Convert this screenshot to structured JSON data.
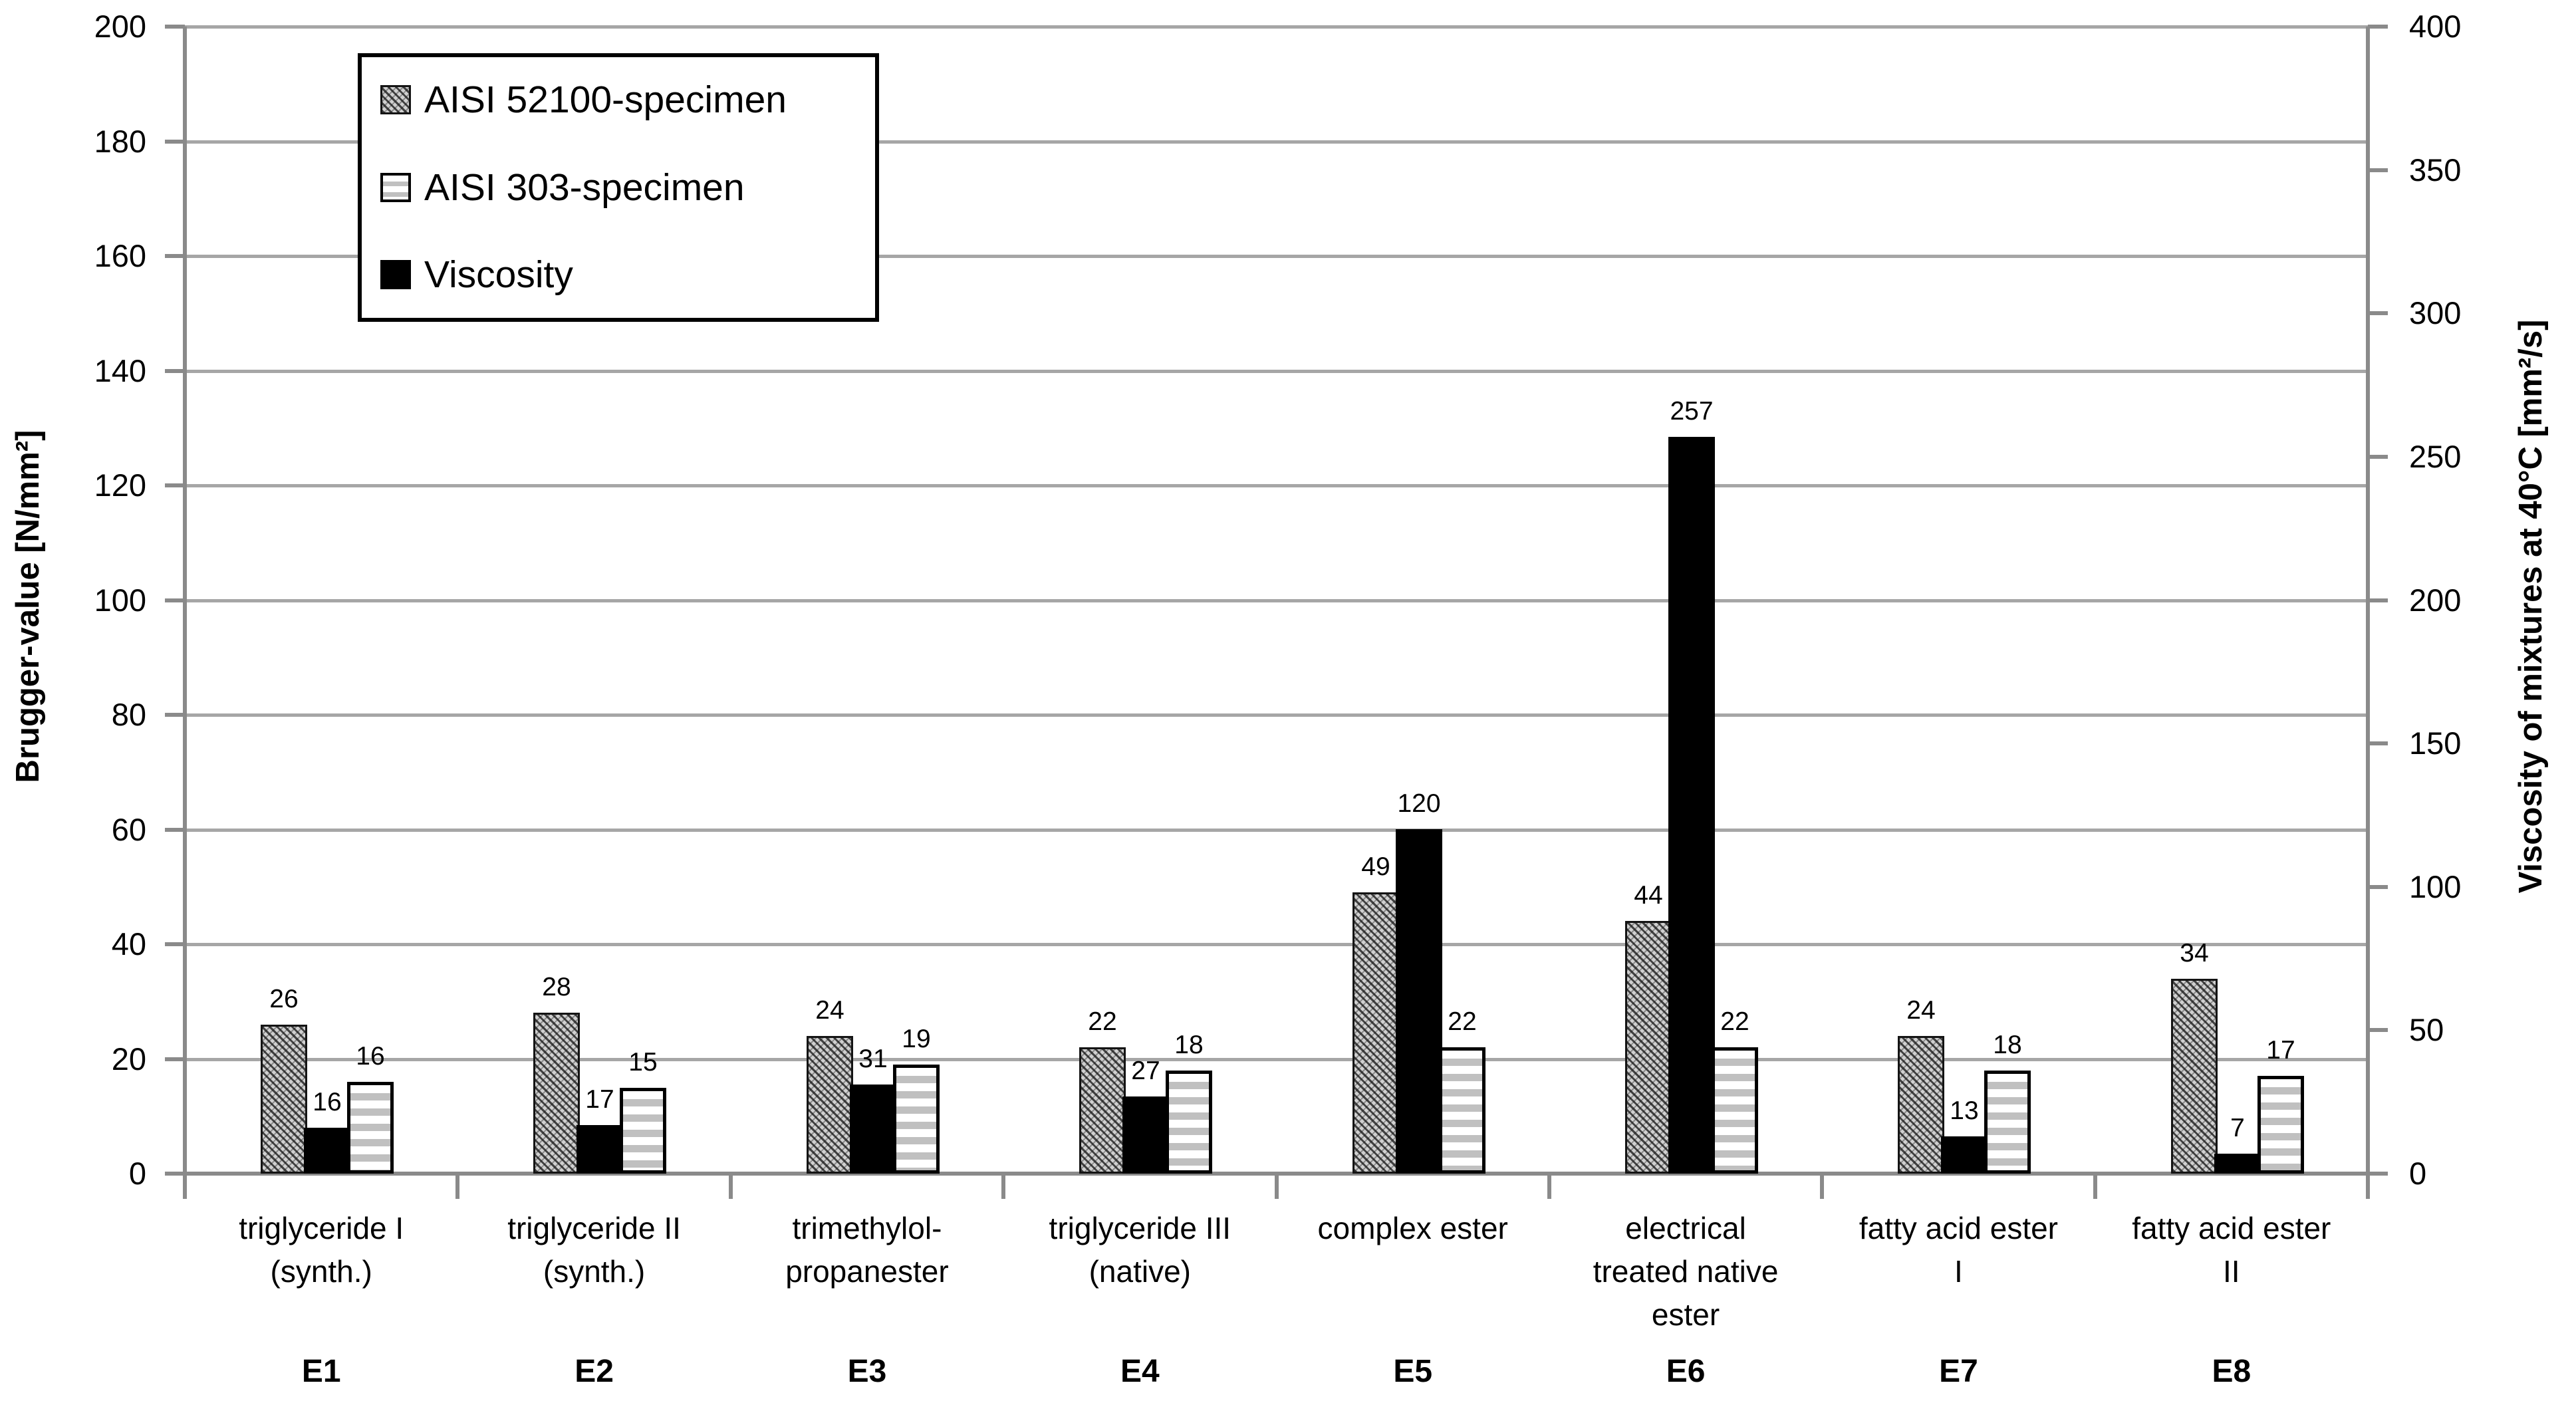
{
  "chart_data": {
    "type": "bar",
    "title": "",
    "grid": "horizontal",
    "legend_position": "top-left",
    "categories": [
      {
        "code": "E1",
        "label_lines": [
          "triglyceride I",
          "(synth.)"
        ]
      },
      {
        "code": "E2",
        "label_lines": [
          "triglyceride II",
          "(synth.)"
        ]
      },
      {
        "code": "E3",
        "label_lines": [
          "trimethylol-",
          "propanester"
        ]
      },
      {
        "code": "E4",
        "label_lines": [
          "triglyceride III",
          "(native)"
        ]
      },
      {
        "code": "E5",
        "label_lines": [
          "complex ester"
        ]
      },
      {
        "code": "E6",
        "label_lines": [
          "electrical",
          "treated native",
          "ester"
        ]
      },
      {
        "code": "E7",
        "label_lines": [
          "fatty acid ester",
          "I"
        ]
      },
      {
        "code": "E8",
        "label_lines": [
          "fatty acid ester",
          "II"
        ]
      }
    ],
    "series": [
      {
        "name": "AISI 52100-specimen",
        "axis": "left",
        "style": "hatch",
        "values": [
          26,
          28,
          24,
          22,
          49,
          44,
          24,
          34
        ]
      },
      {
        "name": "Viscosity",
        "axis": "right",
        "style": "solid",
        "values": [
          16,
          17,
          31,
          27,
          120,
          257,
          13,
          7
        ]
      },
      {
        "name": "AISI 303-specimen",
        "axis": "left",
        "style": "stripes",
        "values": [
          16,
          15,
          19,
          18,
          22,
          22,
          18,
          17
        ]
      }
    ],
    "axes": {
      "left": {
        "title": "Brugger-value [N/mm²]",
        "min": 0,
        "max": 200,
        "ticks": [
          200,
          180,
          160,
          140,
          120,
          100,
          80,
          60,
          40,
          20,
          0
        ]
      },
      "right": {
        "title": "Viscosity of mixtures at 40°C [mm²/s]",
        "min": 0,
        "max": 400,
        "ticks": [
          400,
          350,
          300,
          250,
          200,
          150,
          100,
          50,
          0
        ]
      }
    },
    "legend": {
      "items": [
        {
          "label": "AISI 52100-specimen",
          "style": "hatch"
        },
        {
          "label": "AISI 303-specimen",
          "style": "stripes"
        },
        {
          "label": "Viscosity",
          "style": "solid"
        }
      ]
    },
    "colors": {
      "gridline": "#a6a6a6",
      "axis_line": "#8a8a8a",
      "viscosity_bar": "#000000",
      "stripe_gray": "#c0c0c0",
      "hatch_gray": "#d0d0d0",
      "text": "#000000",
      "background": "#ffffff"
    }
  }
}
